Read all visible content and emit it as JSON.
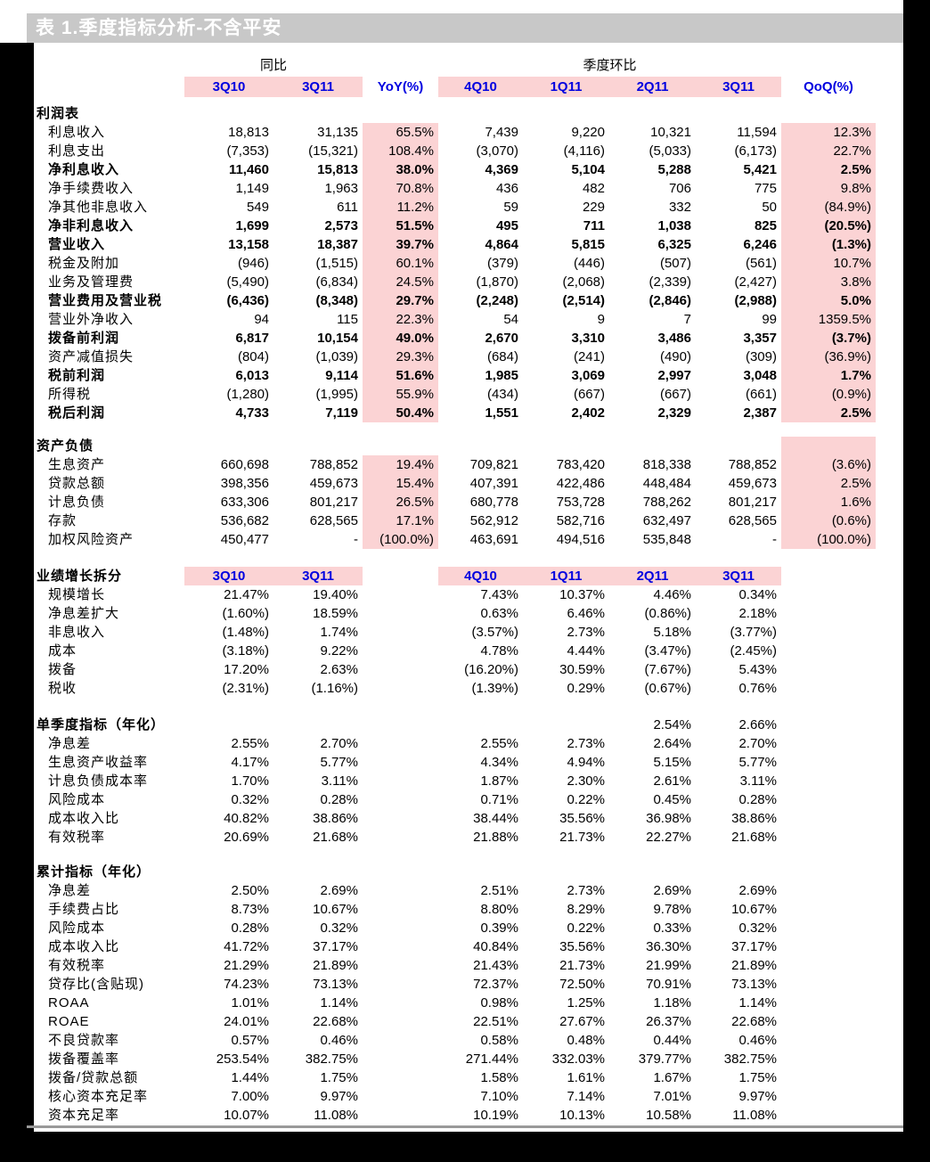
{
  "title": "表 1.季度指标分析-不含平安",
  "colors": {
    "highlight_pink": "#FBD3D4",
    "header_blue": "#0000E0",
    "titlebar_bg": "#C8C8C8",
    "titlebar_text": "#FFFFFF"
  },
  "group_header": {
    "yoy_label": "同比",
    "qoq_label": "季度环比"
  },
  "columns": [
    "3Q10",
    "3Q11",
    "YoY(%)",
    "4Q10",
    "1Q11",
    "2Q11",
    "3Q11",
    "QoQ(%)"
  ],
  "sections": [
    {
      "label": "利润表",
      "pink_cols": [
        2,
        7
      ],
      "header_pink_cols": [],
      "header_labels": null,
      "header_values": null,
      "rows": [
        {
          "label": "利息收入",
          "bold": false,
          "values": [
            "18,813",
            "31,135",
            "65.5%",
            "7,439",
            "9,220",
            "10,321",
            "11,594",
            "12.3%"
          ]
        },
        {
          "label": "利息支出",
          "bold": false,
          "values": [
            "(7,353)",
            "(15,321)",
            "108.4%",
            "(3,070)",
            "(4,116)",
            "(5,033)",
            "(6,173)",
            "22.7%"
          ]
        },
        {
          "label": "净利息收入",
          "bold": true,
          "values": [
            "11,460",
            "15,813",
            "38.0%",
            "4,369",
            "5,104",
            "5,288",
            "5,421",
            "2.5%"
          ]
        },
        {
          "label": "净手续费收入",
          "bold": false,
          "values": [
            "1,149",
            "1,963",
            "70.8%",
            "436",
            "482",
            "706",
            "775",
            "9.8%"
          ]
        },
        {
          "label": "净其他非息收入",
          "bold": false,
          "values": [
            "549",
            "611",
            "11.2%",
            "59",
            "229",
            "332",
            "50",
            "(84.9%)"
          ]
        },
        {
          "label": "净非利息收入",
          "bold": true,
          "values": [
            "1,699",
            "2,573",
            "51.5%",
            "495",
            "711",
            "1,038",
            "825",
            "(20.5%)"
          ]
        },
        {
          "label": "营业收入",
          "bold": true,
          "values": [
            "13,158",
            "18,387",
            "39.7%",
            "4,864",
            "5,815",
            "6,325",
            "6,246",
            "(1.3%)"
          ]
        },
        {
          "label": "税金及附加",
          "bold": false,
          "values": [
            "(946)",
            "(1,515)",
            "60.1%",
            "(379)",
            "(446)",
            "(507)",
            "(561)",
            "10.7%"
          ]
        },
        {
          "label": "业务及管理费",
          "bold": false,
          "values": [
            "(5,490)",
            "(6,834)",
            "24.5%",
            "(1,870)",
            "(2,068)",
            "(2,339)",
            "(2,427)",
            "3.8%"
          ]
        },
        {
          "label": "营业费用及营业税",
          "bold": true,
          "values": [
            "(6,436)",
            "(8,348)",
            "29.7%",
            "(2,248)",
            "(2,514)",
            "(2,846)",
            "(2,988)",
            "5.0%"
          ]
        },
        {
          "label": "营业外净收入",
          "bold": false,
          "values": [
            "94",
            "115",
            "22.3%",
            "54",
            "9",
            "7",
            "99",
            "1359.5%"
          ]
        },
        {
          "label": "拨备前利润",
          "bold": true,
          "values": [
            "6,817",
            "10,154",
            "49.0%",
            "2,670",
            "3,310",
            "3,486",
            "3,357",
            "(3.7%)"
          ]
        },
        {
          "label": "资产减值损失",
          "bold": false,
          "values": [
            "(804)",
            "(1,039)",
            "29.3%",
            "(684)",
            "(241)",
            "(490)",
            "(309)",
            "(36.9%)"
          ]
        },
        {
          "label": "税前利润",
          "bold": true,
          "values": [
            "6,013",
            "9,114",
            "51.6%",
            "1,985",
            "3,069",
            "2,997",
            "3,048",
            "1.7%"
          ]
        },
        {
          "label": "所得税",
          "bold": false,
          "values": [
            "(1,280)",
            "(1,995)",
            "55.9%",
            "(434)",
            "(667)",
            "(667)",
            "(661)",
            "(0.9%)"
          ]
        },
        {
          "label": "税后利润",
          "bold": true,
          "values": [
            "4,733",
            "7,119",
            "50.4%",
            "1,551",
            "2,402",
            "2,329",
            "2,387",
            "2.5%"
          ]
        }
      ]
    },
    {
      "label": "资产负债",
      "pink_cols": [
        2,
        7
      ],
      "header_pink_cols": [
        7
      ],
      "header_labels": null,
      "header_values": null,
      "rows": [
        {
          "label": "生息资产",
          "bold": false,
          "values": [
            "660,698",
            "788,852",
            "19.4%",
            "709,821",
            "783,420",
            "818,338",
            "788,852",
            "(3.6%)"
          ]
        },
        {
          "label": "贷款总额",
          "bold": false,
          "values": [
            "398,356",
            "459,673",
            "15.4%",
            "407,391",
            "422,486",
            "448,484",
            "459,673",
            "2.5%"
          ]
        },
        {
          "label": "计息负债",
          "bold": false,
          "values": [
            "633,306",
            "801,217",
            "26.5%",
            "680,778",
            "753,728",
            "788,262",
            "801,217",
            "1.6%"
          ]
        },
        {
          "label": "存款",
          "bold": false,
          "values": [
            "536,682",
            "628,565",
            "17.1%",
            "562,912",
            "582,716",
            "632,497",
            "628,565",
            "(0.6%)"
          ]
        },
        {
          "label": "加权风险资产",
          "bold": false,
          "values": [
            "450,477",
            "-",
            "(100.0%)",
            "463,691",
            "494,516",
            "535,848",
            "-",
            "(100.0%)"
          ]
        }
      ]
    },
    {
      "label": "业绩增长拆分",
      "pink_cols": [],
      "header_pink_cols": [],
      "header_labels": [
        "3Q10",
        "3Q11",
        "",
        "4Q10",
        "1Q11",
        "2Q11",
        "3Q11",
        ""
      ],
      "header_values": null,
      "rows": [
        {
          "label": "规模增长",
          "bold": false,
          "values": [
            "21.47%",
            "19.40%",
            "",
            "7.43%",
            "10.37%",
            "4.46%",
            "0.34%",
            ""
          ]
        },
        {
          "label": "净息差扩大",
          "bold": false,
          "values": [
            "(1.60%)",
            "18.59%",
            "",
            "0.63%",
            "6.46%",
            "(0.86%)",
            "2.18%",
            ""
          ]
        },
        {
          "label": "非息收入",
          "bold": false,
          "values": [
            "(1.48%)",
            "1.74%",
            "",
            "(3.57%)",
            "2.73%",
            "5.18%",
            "(3.77%)",
            ""
          ]
        },
        {
          "label": "成本",
          "bold": false,
          "values": [
            "(3.18%)",
            "9.22%",
            "",
            "4.78%",
            "4.44%",
            "(3.47%)",
            "(2.45%)",
            ""
          ]
        },
        {
          "label": "拨备",
          "bold": false,
          "values": [
            "17.20%",
            "2.63%",
            "",
            "(16.20%)",
            "30.59%",
            "(7.67%)",
            "5.43%",
            ""
          ]
        },
        {
          "label": "税收",
          "bold": false,
          "values": [
            "(2.31%)",
            "(1.16%)",
            "",
            "(1.39%)",
            "0.29%",
            "(0.67%)",
            "0.76%",
            ""
          ]
        }
      ]
    },
    {
      "label": "单季度指标（年化）",
      "pink_cols": [],
      "header_pink_cols": [],
      "header_labels": null,
      "header_values": [
        "",
        "",
        "",
        "",
        "",
        "2.54%",
        "2.66%",
        ""
      ],
      "rows": [
        {
          "label": "净息差",
          "bold": false,
          "values": [
            "2.55%",
            "2.70%",
            "",
            "2.55%",
            "2.73%",
            "2.64%",
            "2.70%",
            ""
          ]
        },
        {
          "label": "生息资产收益率",
          "bold": false,
          "values": [
            "4.17%",
            "5.77%",
            "",
            "4.34%",
            "4.94%",
            "5.15%",
            "5.77%",
            ""
          ]
        },
        {
          "label": "计息负债成本率",
          "bold": false,
          "values": [
            "1.70%",
            "3.11%",
            "",
            "1.87%",
            "2.30%",
            "2.61%",
            "3.11%",
            ""
          ]
        },
        {
          "label": "风险成本",
          "bold": false,
          "values": [
            "0.32%",
            "0.28%",
            "",
            "0.71%",
            "0.22%",
            "0.45%",
            "0.28%",
            ""
          ]
        },
        {
          "label": "成本收入比",
          "bold": false,
          "values": [
            "40.82%",
            "38.86%",
            "",
            "38.44%",
            "35.56%",
            "36.98%",
            "38.86%",
            ""
          ]
        },
        {
          "label": "有效税率",
          "bold": false,
          "values": [
            "20.69%",
            "21.68%",
            "",
            "21.88%",
            "21.73%",
            "22.27%",
            "21.68%",
            ""
          ]
        }
      ]
    },
    {
      "label": "累计指标（年化）",
      "pink_cols": [],
      "header_pink_cols": [],
      "header_labels": null,
      "header_values": null,
      "rows": [
        {
          "label": "净息差",
          "bold": false,
          "values": [
            "2.50%",
            "2.69%",
            "",
            "2.51%",
            "2.73%",
            "2.69%",
            "2.69%",
            ""
          ]
        },
        {
          "label": "手续费占比",
          "bold": false,
          "values": [
            "8.73%",
            "10.67%",
            "",
            "8.80%",
            "8.29%",
            "9.78%",
            "10.67%",
            ""
          ]
        },
        {
          "label": "风险成本",
          "bold": false,
          "values": [
            "0.28%",
            "0.32%",
            "",
            "0.39%",
            "0.22%",
            "0.33%",
            "0.32%",
            ""
          ]
        },
        {
          "label": "成本收入比",
          "bold": false,
          "values": [
            "41.72%",
            "37.17%",
            "",
            "40.84%",
            "35.56%",
            "36.30%",
            "37.17%",
            ""
          ]
        },
        {
          "label": "有效税率",
          "bold": false,
          "values": [
            "21.29%",
            "21.89%",
            "",
            "21.43%",
            "21.73%",
            "21.99%",
            "21.89%",
            ""
          ]
        },
        {
          "label": "贷存比(含贴现)",
          "bold": false,
          "values": [
            "74.23%",
            "73.13%",
            "",
            "72.37%",
            "72.50%",
            "70.91%",
            "73.13%",
            ""
          ]
        },
        {
          "label": "ROAA",
          "bold": false,
          "values": [
            "1.01%",
            "1.14%",
            "",
            "0.98%",
            "1.25%",
            "1.18%",
            "1.14%",
            ""
          ]
        },
        {
          "label": "ROAE",
          "bold": false,
          "values": [
            "24.01%",
            "22.68%",
            "",
            "22.51%",
            "27.67%",
            "26.37%",
            "22.68%",
            ""
          ]
        },
        {
          "label": "不良贷款率",
          "bold": false,
          "values": [
            "0.57%",
            "0.46%",
            "",
            "0.58%",
            "0.48%",
            "0.44%",
            "0.46%",
            ""
          ]
        },
        {
          "label": "拨备覆盖率",
          "bold": false,
          "values": [
            "253.54%",
            "382.75%",
            "",
            "271.44%",
            "332.03%",
            "379.77%",
            "382.75%",
            ""
          ]
        },
        {
          "label": "拨备/贷款总额",
          "bold": false,
          "values": [
            "1.44%",
            "1.75%",
            "",
            "1.58%",
            "1.61%",
            "1.67%",
            "1.75%",
            ""
          ]
        },
        {
          "label": "核心资本充足率",
          "bold": false,
          "values": [
            "7.00%",
            "9.97%",
            "",
            "7.10%",
            "7.14%",
            "7.01%",
            "9.97%",
            ""
          ]
        },
        {
          "label": "资本充足率",
          "bold": false,
          "values": [
            "10.07%",
            "11.08%",
            "",
            "10.19%",
            "10.13%",
            "10.58%",
            "11.08%",
            ""
          ]
        }
      ]
    }
  ]
}
